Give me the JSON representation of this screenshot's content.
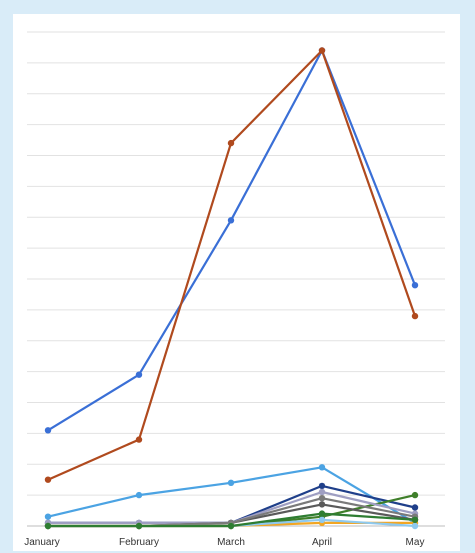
{
  "chart_data": {
    "type": "line",
    "categories": [
      "January",
      "February",
      "March",
      "April",
      "May"
    ],
    "ylim": [
      0,
      160
    ],
    "grid": true,
    "gridlines": 16,
    "legend": "none",
    "series": [
      {
        "color": "#3a6fd6",
        "values": [
          31,
          49,
          99,
          154,
          78
        ]
      },
      {
        "color": "#b04a1e",
        "values": [
          15,
          28,
          124,
          154,
          68
        ]
      },
      {
        "color": "#4ba3e3",
        "values": [
          3,
          10,
          14,
          19,
          1
        ]
      },
      {
        "color": "#1f3f8a",
        "values": [
          1,
          1,
          1,
          13,
          6
        ]
      },
      {
        "color": "#3f7f2a",
        "values": [
          0,
          0,
          0,
          3,
          10
        ]
      },
      {
        "color": "#9e9ec2",
        "values": [
          1,
          1,
          1,
          11,
          4
        ]
      },
      {
        "color": "#5a5a5a",
        "values": [
          0,
          0,
          1,
          7,
          2
        ]
      },
      {
        "color": "#7a7a7a",
        "values": [
          0,
          0,
          1,
          9,
          3
        ]
      },
      {
        "color": "#f2a623",
        "values": [
          0,
          0,
          0,
          1,
          1
        ]
      },
      {
        "color": "#8ec9ef",
        "values": [
          0,
          0,
          0,
          2,
          0
        ]
      },
      {
        "color": "#2e7d32",
        "values": [
          0,
          0,
          0,
          4,
          2
        ]
      }
    ]
  }
}
